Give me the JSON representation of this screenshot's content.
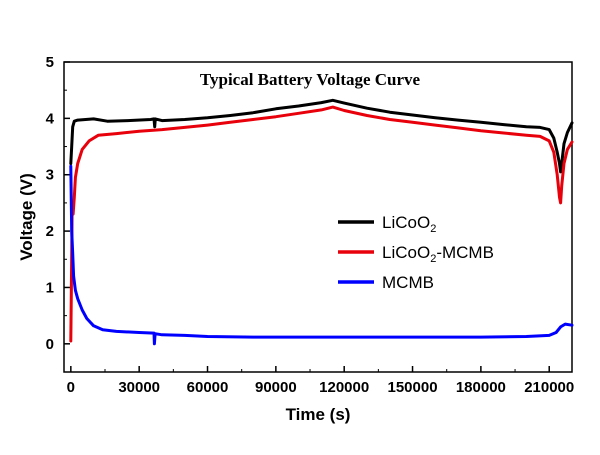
{
  "chart_data": {
    "type": "line",
    "title": "Typical Battery Voltage Curve",
    "xlabel": "Time (s)",
    "ylabel": "Voltage (V)",
    "xlim": [
      -3000,
      220000
    ],
    "ylim": [
      -0.5,
      5
    ],
    "x_ticks": [
      0,
      30000,
      60000,
      90000,
      120000,
      150000,
      180000,
      210000
    ],
    "x_tick_labels": [
      "0",
      "30000",
      "60000",
      "90000",
      "120000",
      "150000",
      "180000",
      "210000"
    ],
    "y_ticks": [
      0,
      1,
      2,
      3,
      4,
      5
    ],
    "y_tick_labels": [
      "0",
      "1",
      "2",
      "3",
      "4",
      "5"
    ],
    "legend_position": "center-right",
    "series": [
      {
        "name": "LiCoO2",
        "legend_main": "LiCoO",
        "legend_sub": "2",
        "legend_tail": "",
        "color": "#000000",
        "points": [
          [
            0,
            3.2
          ],
          [
            400,
            3.5
          ],
          [
            800,
            3.85
          ],
          [
            1500,
            3.95
          ],
          [
            3000,
            3.97
          ],
          [
            10000,
            3.99
          ],
          [
            16000,
            3.95
          ],
          [
            25000,
            3.96
          ],
          [
            35000,
            3.98
          ],
          [
            36500,
            3.99
          ],
          [
            36800,
            3.85
          ],
          [
            37100,
            3.99
          ],
          [
            40000,
            3.96
          ],
          [
            50000,
            3.98
          ],
          [
            60000,
            4.01
          ],
          [
            70000,
            4.05
          ],
          [
            80000,
            4.1
          ],
          [
            90000,
            4.17
          ],
          [
            100000,
            4.22
          ],
          [
            110000,
            4.28
          ],
          [
            115000,
            4.32
          ],
          [
            120000,
            4.27
          ],
          [
            130000,
            4.18
          ],
          [
            140000,
            4.11
          ],
          [
            150000,
            4.06
          ],
          [
            160000,
            4.01
          ],
          [
            170000,
            3.97
          ],
          [
            180000,
            3.93
          ],
          [
            190000,
            3.89
          ],
          [
            200000,
            3.85
          ],
          [
            206000,
            3.84
          ],
          [
            210000,
            3.8
          ],
          [
            212000,
            3.65
          ],
          [
            213500,
            3.4
          ],
          [
            214500,
            3.2
          ],
          [
            215000,
            3.05
          ],
          [
            215500,
            3.2
          ],
          [
            216500,
            3.55
          ],
          [
            218000,
            3.75
          ],
          [
            220000,
            3.92
          ]
        ]
      },
      {
        "name": "LiCoO2-MCMB",
        "legend_main": "LiCoO",
        "legend_sub": "2",
        "legend_tail": "-MCMB",
        "color": "#e8000b",
        "points": [
          [
            0,
            0.05
          ],
          [
            300,
            1.2
          ],
          [
            600,
            2.5
          ],
          [
            1000,
            2.3
          ],
          [
            1500,
            2.6
          ],
          [
            2000,
            2.95
          ],
          [
            3000,
            3.2
          ],
          [
            5000,
            3.45
          ],
          [
            8000,
            3.6
          ],
          [
            12000,
            3.7
          ],
          [
            20000,
            3.73
          ],
          [
            30000,
            3.77
          ],
          [
            40000,
            3.8
          ],
          [
            50000,
            3.84
          ],
          [
            60000,
            3.88
          ],
          [
            70000,
            3.93
          ],
          [
            80000,
            3.98
          ],
          [
            90000,
            4.03
          ],
          [
            100000,
            4.09
          ],
          [
            110000,
            4.15
          ],
          [
            115000,
            4.2
          ],
          [
            120000,
            4.14
          ],
          [
            130000,
            4.05
          ],
          [
            140000,
            3.98
          ],
          [
            150000,
            3.93
          ],
          [
            160000,
            3.88
          ],
          [
            170000,
            3.83
          ],
          [
            180000,
            3.78
          ],
          [
            190000,
            3.74
          ],
          [
            200000,
            3.7
          ],
          [
            206000,
            3.68
          ],
          [
            210000,
            3.6
          ],
          [
            212000,
            3.4
          ],
          [
            213500,
            3.0
          ],
          [
            214500,
            2.6
          ],
          [
            215000,
            2.5
          ],
          [
            215500,
            2.8
          ],
          [
            216500,
            3.2
          ],
          [
            218000,
            3.45
          ],
          [
            220000,
            3.58
          ]
        ]
      },
      {
        "name": "MCMB",
        "legend_main": "MCMB",
        "legend_sub": "",
        "legend_tail": "",
        "color": "#0000ff",
        "points": [
          [
            0,
            3.15
          ],
          [
            400,
            2.0
          ],
          [
            800,
            1.6
          ],
          [
            1200,
            1.2
          ],
          [
            2000,
            0.95
          ],
          [
            3000,
            0.8
          ],
          [
            5000,
            0.6
          ],
          [
            7000,
            0.45
          ],
          [
            10000,
            0.32
          ],
          [
            14000,
            0.25
          ],
          [
            20000,
            0.22
          ],
          [
            30000,
            0.2
          ],
          [
            36500,
            0.19
          ],
          [
            36700,
            0.0
          ],
          [
            37000,
            0.18
          ],
          [
            40000,
            0.16
          ],
          [
            50000,
            0.15
          ],
          [
            60000,
            0.13
          ],
          [
            80000,
            0.12
          ],
          [
            100000,
            0.12
          ],
          [
            120000,
            0.12
          ],
          [
            140000,
            0.12
          ],
          [
            160000,
            0.12
          ],
          [
            180000,
            0.12
          ],
          [
            200000,
            0.13
          ],
          [
            210000,
            0.15
          ],
          [
            213000,
            0.2
          ],
          [
            215000,
            0.3
          ],
          [
            217000,
            0.35
          ],
          [
            220000,
            0.33
          ]
        ]
      }
    ]
  }
}
